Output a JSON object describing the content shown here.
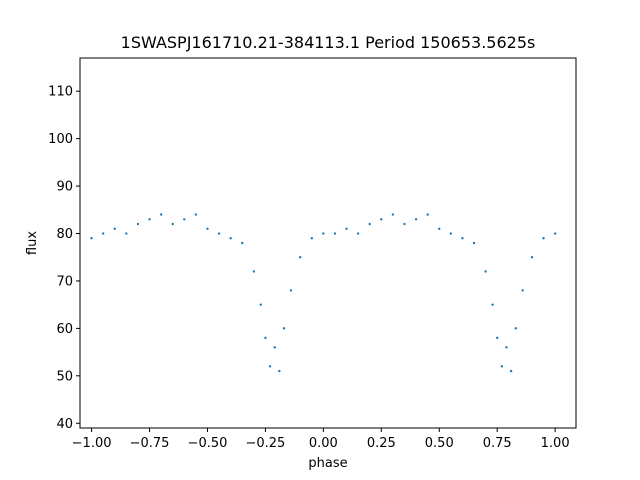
{
  "chart_data": {
    "type": "scatter",
    "title": "1SWASPJ161710.21-384113.1 Period 150653.5625s",
    "xlabel": "phase",
    "ylabel": "flux",
    "xlim": [
      -1.05,
      1.09
    ],
    "ylim": [
      39,
      117
    ],
    "xticks": [
      -1.0,
      -0.75,
      -0.5,
      -0.25,
      0.0,
      0.25,
      0.5,
      0.75,
      1.0
    ],
    "xtick_labels": [
      "−1.00",
      "−0.75",
      "−0.50",
      "−0.25",
      "0.00",
      "0.25",
      "0.50",
      "0.75",
      "1.00"
    ],
    "yticks": [
      40,
      50,
      60,
      70,
      80,
      90,
      100,
      110
    ],
    "ytick_labels": [
      "40",
      "50",
      "60",
      "70",
      "80",
      "90",
      "100",
      "110"
    ],
    "grid": false,
    "point_color": "#1f77b4",
    "series": [
      {
        "values_description": "folded light curve, baseline flux ~79 with primary eclipse minima ~50",
        "points": [
          [
            -1.0,
            79
          ],
          [
            -0.95,
            80
          ],
          [
            -0.9,
            81
          ],
          [
            -0.85,
            80
          ],
          [
            -0.8,
            82
          ],
          [
            -0.75,
            83
          ],
          [
            -0.7,
            84
          ],
          [
            -0.65,
            82
          ],
          [
            -0.6,
            83
          ],
          [
            -0.55,
            84
          ],
          [
            -0.5,
            81
          ],
          [
            -0.45,
            80
          ],
          [
            -0.4,
            79
          ],
          [
            -0.35,
            78
          ],
          [
            -0.3,
            72
          ],
          [
            -0.27,
            65
          ],
          [
            -0.25,
            58
          ],
          [
            -0.23,
            52
          ],
          [
            -0.21,
            56
          ],
          [
            -0.19,
            51
          ],
          [
            -0.17,
            60
          ],
          [
            -0.14,
            68
          ],
          [
            -0.1,
            75
          ],
          [
            -0.05,
            79
          ],
          [
            0.0,
            80
          ],
          [
            0.05,
            80
          ],
          [
            0.1,
            81
          ],
          [
            0.15,
            80
          ],
          [
            0.2,
            82
          ],
          [
            0.25,
            83
          ],
          [
            0.3,
            84
          ],
          [
            0.35,
            82
          ],
          [
            0.4,
            83
          ],
          [
            0.45,
            84
          ],
          [
            0.5,
            81
          ],
          [
            0.55,
            80
          ],
          [
            0.6,
            79
          ],
          [
            0.65,
            78
          ],
          [
            0.7,
            72
          ],
          [
            0.73,
            65
          ],
          [
            0.75,
            58
          ],
          [
            0.77,
            52
          ],
          [
            0.79,
            56
          ],
          [
            0.81,
            51
          ],
          [
            0.83,
            60
          ],
          [
            0.86,
            68
          ],
          [
            0.9,
            75
          ],
          [
            0.95,
            79
          ],
          [
            1.0,
            80
          ]
        ]
      }
    ]
  }
}
